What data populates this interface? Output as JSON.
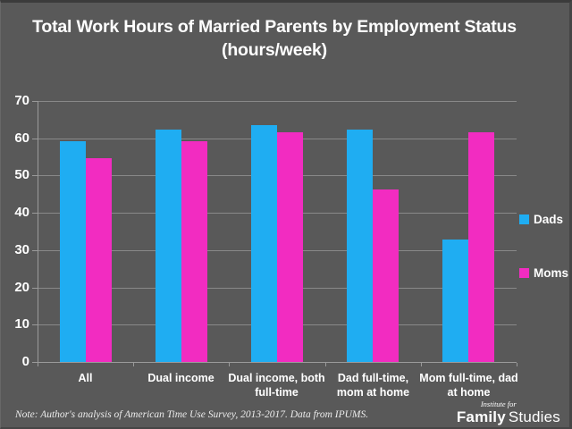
{
  "title": "Total Work Hours of Married Parents by Employment Status (hours/week)",
  "colors": {
    "background": "#595959",
    "dads": "#1fadf2",
    "moms": "#f22cc1",
    "grid": "#898989",
    "axis": "#9a9a9a",
    "text": "#ffffff"
  },
  "chart_data": {
    "type": "bar",
    "title": "Total Work Hours of Married Parents by Employment Status (hours/week)",
    "categories": [
      "All",
      "Dual income",
      "Dual income, both full-time",
      "Dad full-time, mom at home",
      "Mom full-time, dad at home"
    ],
    "series": [
      {
        "name": "Dads",
        "color_key": "dads",
        "values": [
          59.2,
          62.4,
          63.5,
          62.4,
          32.8
        ]
      },
      {
        "name": "Moms",
        "color_key": "moms",
        "values": [
          54.6,
          59.2,
          61.5,
          46.3,
          61.5
        ]
      }
    ],
    "xlabel": "",
    "ylabel": "",
    "ylim": [
      0,
      70
    ],
    "yticks": [
      0,
      10,
      20,
      30,
      40,
      50,
      60,
      70
    ],
    "grid": true,
    "legend_position": "right"
  },
  "footer": {
    "note": "Note: Author's analysis of American Time Use Survey, 2013-2017. Data from IPUMS.",
    "logo_top": "Institute for",
    "logo_bold": "Family",
    "logo_light": "Studies"
  }
}
